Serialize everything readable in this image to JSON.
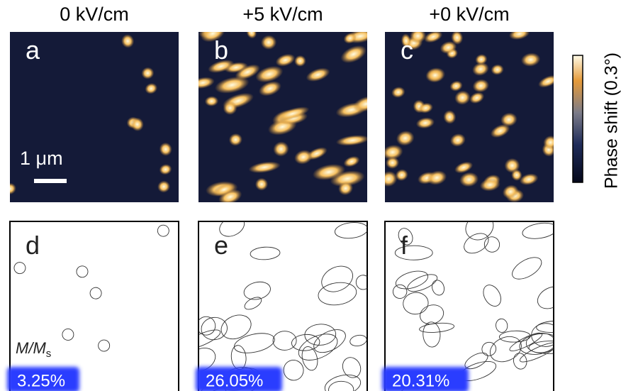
{
  "columns": [
    {
      "title": "0 kV/cm",
      "top_label": "a",
      "bottom_label": "d",
      "fraction": "3.25%"
    },
    {
      "title": "+5 kV/cm",
      "top_label": "b",
      "bottom_label": "e",
      "fraction": "26.05%"
    },
    {
      "title": "+0 kV/cm",
      "top_label": "c",
      "bottom_label": "f",
      "fraction": "20.31%"
    }
  ],
  "scale_bar": "1 μm",
  "colorbar_label": "Phase shift (0.3°)",
  "ratio_label": {
    "main": "M/M",
    "sub": "s"
  }
}
